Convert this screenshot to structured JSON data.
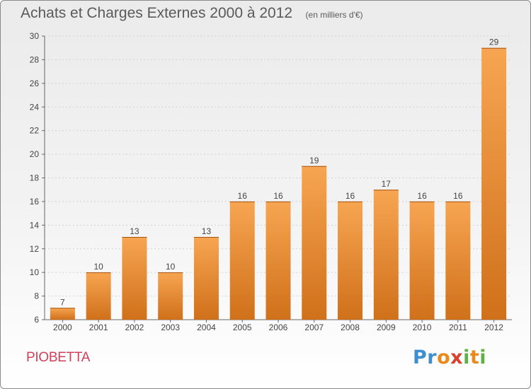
{
  "header": {
    "title": "Achats et Charges Externes 2000 à 2012",
    "unit": "(en milliers d'€)"
  },
  "footer": {
    "commune": "PIOBETTA",
    "brand": "Proxiti"
  },
  "colors": {
    "bar_light": "#f7a552",
    "bar_dark": "#d0701a",
    "commune": "#d0405a"
  },
  "chart_data": {
    "type": "bar",
    "title": "Achats et Charges Externes 2000 à 2012",
    "subtitle": "(en milliers d'€)",
    "categories": [
      "2000",
      "2001",
      "2002",
      "2003",
      "2004",
      "2005",
      "2006",
      "2007",
      "2008",
      "2009",
      "2010",
      "2011",
      "2012"
    ],
    "values": [
      7,
      10,
      13,
      10,
      13,
      16,
      16,
      19,
      16,
      17,
      16,
      16,
      29
    ],
    "ylim": [
      6,
      30
    ],
    "yticks": [
      6,
      8,
      10,
      12,
      14,
      16,
      18,
      20,
      22,
      24,
      26,
      28,
      30
    ],
    "grid": true,
    "data_labels": true
  }
}
